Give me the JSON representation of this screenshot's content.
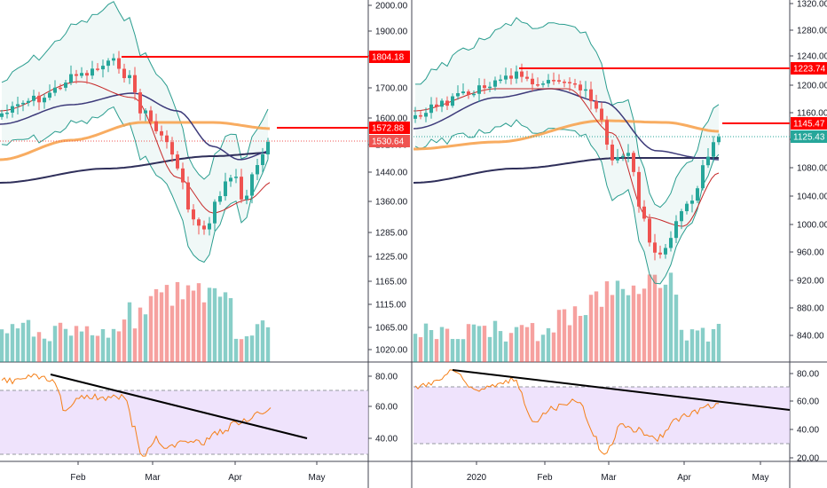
{
  "chart_data": [
    {
      "type": "candlestick",
      "panel": "left",
      "y_axis": {
        "ticks": [
          "2000.00",
          "1900.00",
          "1800.00",
          "1700.00",
          "1600.00",
          "1520.00",
          "1440.00",
          "1360.00",
          "1285.00",
          "1225.00",
          "1165.00",
          "1115.00",
          "1065.00",
          "1020.00"
        ]
      },
      "x_axis": {
        "ticks": [
          "Feb",
          "Mar",
          "Apr",
          "May"
        ]
      },
      "price_labels": [
        {
          "text": "1804.18",
          "style": "red"
        },
        {
          "text": "1572.88",
          "style": "red"
        },
        {
          "text": "1530.64",
          "style": "pink"
        }
      ],
      "rsi_axis": {
        "ticks": [
          "80.00",
          "60.00",
          "40.00"
        ]
      },
      "colors": {
        "up": "#26a69a",
        "down": "#ef5350",
        "resistance": "#ff0000",
        "ema": "#f7a350",
        "sma": "#2f2f5a",
        "bollinger": "#2a9d8f",
        "rsi": "#f57f17",
        "rsi_band": "#e8d7fb"
      }
    },
    {
      "type": "candlestick",
      "panel": "right",
      "y_axis": {
        "ticks": [
          "1320.00",
          "1280.00",
          "1240.00",
          "1200.00",
          "1160.00",
          "1120.00",
          "1080.00",
          "1040.00",
          "1000.00",
          "960.00",
          "920.00",
          "880.00",
          "840.00"
        ]
      },
      "x_axis": {
        "ticks": [
          "2020",
          "Feb",
          "Mar",
          "Apr",
          "May"
        ]
      },
      "price_labels": [
        {
          "text": "1223.74",
          "style": "red"
        },
        {
          "text": "1145.47",
          "style": "red"
        },
        {
          "text": "1125.43",
          "style": "teal"
        }
      ],
      "rsi_axis": {
        "ticks": [
          "80.00",
          "60.00",
          "40.00",
          "20.00"
        ]
      },
      "colors": {
        "up": "#26a69a",
        "down": "#ef5350",
        "resistance": "#ff0000",
        "ema": "#f7a350",
        "sma": "#2f2f5a",
        "bollinger": "#2a9d8f",
        "rsi": "#f57f17",
        "rsi_band": "#e8d7fb"
      }
    }
  ]
}
